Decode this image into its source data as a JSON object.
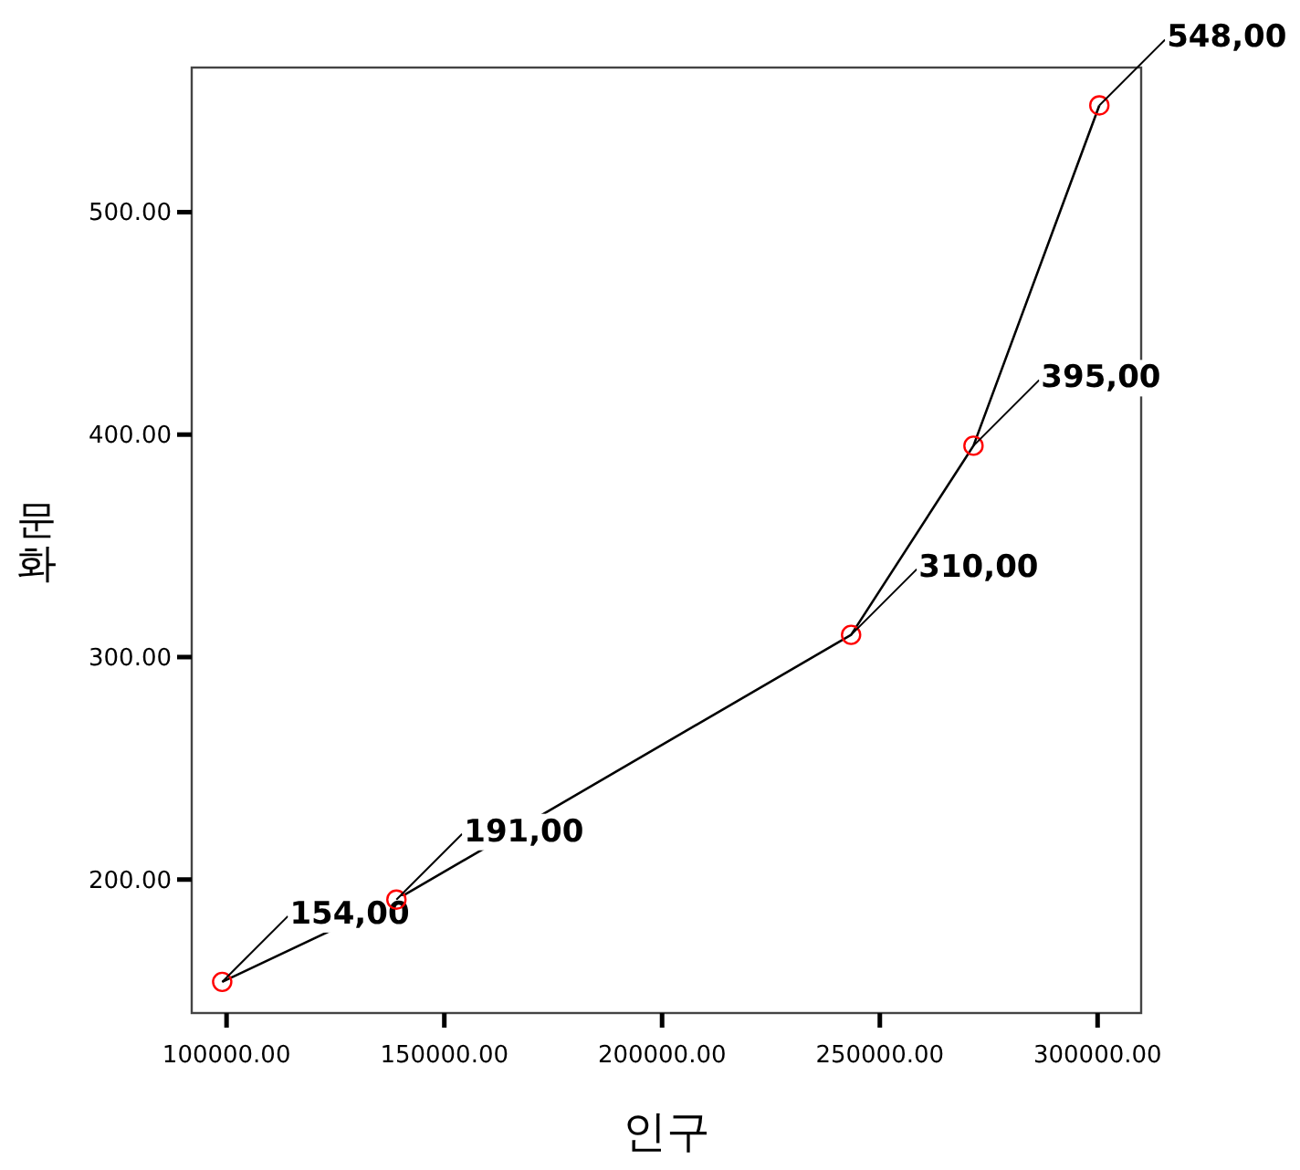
{
  "chart_data": {
    "type": "line",
    "xlabel": "인구",
    "ylabel": "문화",
    "x": [
      99000,
      139000,
      243400,
      271500,
      300400
    ],
    "series": [
      {
        "color": "#000000",
        "colors": [
          "#ff0000",
          "#ff0000",
          "#ff0000",
          "#ff0000",
          "#ff0000"
        ],
        "values": [
          154,
          191,
          310,
          395,
          548
        ],
        "value_labels": [
          "154,00",
          "191,00",
          "310,00",
          "395,00",
          "548,00"
        ]
      }
    ],
    "marker": "circle",
    "grid": false,
    "xlim": [
      92000,
      310000
    ],
    "ylim": [
      140,
      565
    ],
    "xticks": [
      {
        "value": 100000,
        "label": "100000.00"
      },
      {
        "value": 150000,
        "label": "150000.00"
      },
      {
        "value": 200000,
        "label": "200000.00"
      },
      {
        "value": 250000,
        "label": "250000.00"
      },
      {
        "value": 300000,
        "label": "300000.00"
      }
    ],
    "yticks": [
      {
        "value": 200,
        "label": "200.00"
      },
      {
        "value": 300,
        "label": "300.00"
      },
      {
        "value": 400,
        "label": "400.00"
      },
      {
        "value": 500,
        "label": "500.00"
      }
    ]
  }
}
